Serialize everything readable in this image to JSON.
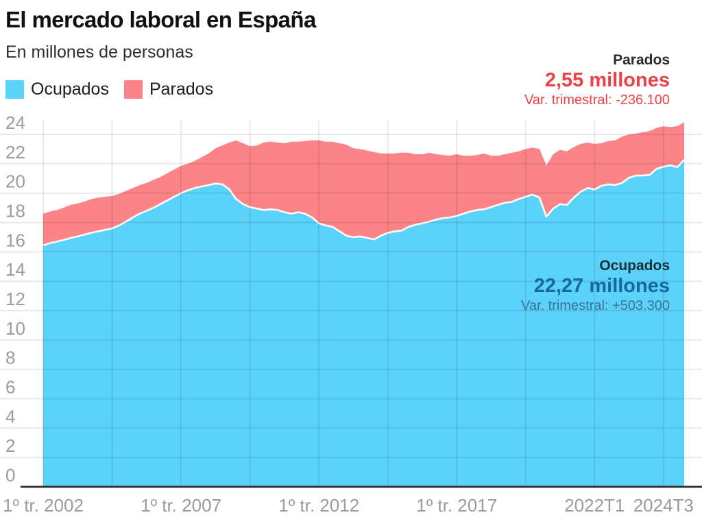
{
  "header": {
    "title": "El mercado laboral en España",
    "subtitle": "En millones de personas"
  },
  "legend": [
    {
      "label": "Ocupados",
      "color": "#5bd2f9"
    },
    {
      "label": "Parados",
      "color": "#fa8488"
    }
  ],
  "annotations": {
    "parados": {
      "label": "Parados",
      "value": "2,55 millones",
      "variation": "Var. trimestral: -236.100"
    },
    "ocupados": {
      "label": "Ocupados",
      "value": "22,27 millones",
      "variation": "Var. trimestral: +503.300"
    }
  },
  "chart_data": {
    "type": "area",
    "stacked": true,
    "title": "El mercado laboral en España",
    "subtitle": "En millones de personas",
    "unit": "millones de personas",
    "frequency": "quarterly",
    "x_start": "2002Q1",
    "x_end": "2025Q2",
    "ylim": [
      0,
      24
    ],
    "y_ticks": [
      0,
      2,
      4,
      6,
      8,
      10,
      12,
      14,
      16,
      18,
      20,
      22,
      24
    ],
    "x_ticks": [
      {
        "index": 0,
        "label": "1º tr. 2002"
      },
      {
        "index": 20,
        "label": "1º tr. 2007"
      },
      {
        "index": 40,
        "label": "1º tr. 2012"
      },
      {
        "index": 60,
        "label": "1º tr. 2017"
      },
      {
        "index": 80,
        "label": "2022T1"
      },
      {
        "index": 90,
        "label": "2024T3"
      }
    ],
    "x_gridline_indices": [
      0,
      10,
      20,
      30,
      40,
      50,
      60,
      70,
      80,
      90
    ],
    "series": [
      {
        "name": "Ocupados",
        "color": "#5bd2f9",
        "values": [
          16.45,
          16.6,
          16.7,
          16.82,
          16.95,
          17.05,
          17.18,
          17.3,
          17.4,
          17.5,
          17.6,
          17.8,
          18.05,
          18.35,
          18.6,
          18.8,
          19.0,
          19.25,
          19.5,
          19.75,
          20.0,
          20.2,
          20.35,
          20.45,
          20.55,
          20.65,
          20.6,
          20.25,
          19.6,
          19.25,
          19.05,
          18.95,
          18.85,
          18.9,
          18.85,
          18.7,
          18.6,
          18.7,
          18.6,
          18.35,
          17.95,
          17.8,
          17.7,
          17.4,
          17.1,
          17.0,
          17.05,
          16.95,
          16.85,
          17.1,
          17.3,
          17.4,
          17.45,
          17.7,
          17.85,
          17.95,
          18.05,
          18.2,
          18.3,
          18.35,
          18.45,
          18.6,
          18.75,
          18.85,
          18.9,
          19.05,
          19.2,
          19.35,
          19.4,
          19.6,
          19.75,
          19.9,
          19.7,
          18.4,
          18.95,
          19.25,
          19.2,
          19.7,
          20.1,
          20.35,
          20.25,
          20.5,
          20.6,
          20.55,
          20.7,
          21.05,
          21.2,
          21.2,
          21.25,
          21.65,
          21.8,
          21.9,
          21.77,
          22.27
        ]
      },
      {
        "name": "Parados",
        "color": "#fa8488",
        "values": [
          2.15,
          2.15,
          2.15,
          2.2,
          2.25,
          2.25,
          2.25,
          2.3,
          2.3,
          2.25,
          2.2,
          2.15,
          2.1,
          2.0,
          1.95,
          1.9,
          1.9,
          1.85,
          1.85,
          1.85,
          1.85,
          1.8,
          1.85,
          2.0,
          2.15,
          2.4,
          2.65,
          3.2,
          4.0,
          4.15,
          4.15,
          4.3,
          4.6,
          4.6,
          4.6,
          4.7,
          4.9,
          4.8,
          4.95,
          5.25,
          5.65,
          5.7,
          5.8,
          6.0,
          6.2,
          6.05,
          5.95,
          5.95,
          5.95,
          5.6,
          5.4,
          5.3,
          5.3,
          5.05,
          4.8,
          4.7,
          4.7,
          4.45,
          4.3,
          4.2,
          4.2,
          3.95,
          3.8,
          3.75,
          3.8,
          3.5,
          3.35,
          3.3,
          3.35,
          3.25,
          3.25,
          3.2,
          3.3,
          3.5,
          3.7,
          3.7,
          3.65,
          3.45,
          3.25,
          3.1,
          3.1,
          2.9,
          2.95,
          3.05,
          3.15,
          2.95,
          2.85,
          2.95,
          2.98,
          2.8,
          2.75,
          2.6,
          2.79,
          2.55
        ]
      }
    ],
    "latest": {
      "ocupados_millones": "22,27",
      "parados_millones": "2,55",
      "var_trimestral_ocupados": "+503.300",
      "var_trimestral_parados": "-236.100"
    }
  }
}
